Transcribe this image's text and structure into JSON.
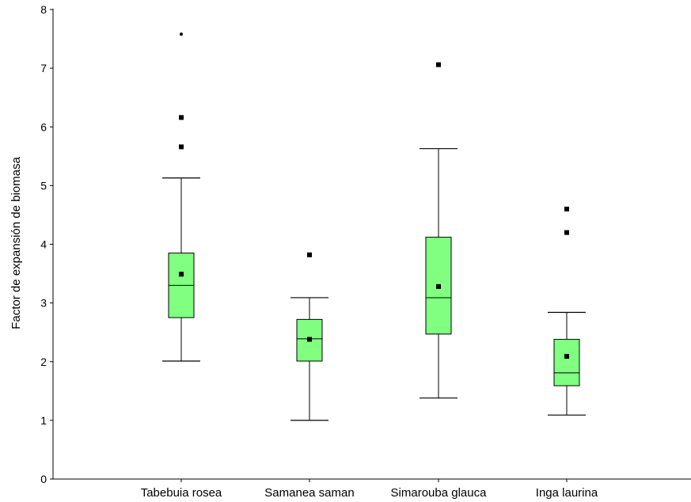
{
  "chart_data": {
    "type": "box",
    "title": "",
    "xlabel": "",
    "ylabel": "Factor de expansión de biomasa",
    "ylim": [
      0,
      8
    ],
    "yticks": [
      "0",
      "1",
      "2",
      "3",
      "4",
      "5",
      "6",
      "7",
      "8"
    ],
    "grid": false,
    "legend": "none",
    "box_color": "#80ff80",
    "categories": [
      "Tabebuia rosea",
      "Samanea saman",
      "Simarouba glauca",
      "Inga laurina"
    ],
    "boxes": [
      {
        "whisker_low": 2.01,
        "q1": 2.75,
        "median": 3.3,
        "q3": 3.85,
        "whisker_high": 5.13,
        "mean": 3.49,
        "outliers": [
          5.66,
          6.16
        ],
        "extremes": [
          7.58
        ]
      },
      {
        "whisker_low": 1.0,
        "q1": 2.01,
        "median": 2.39,
        "q3": 2.72,
        "whisker_high": 3.09,
        "mean": 2.38,
        "outliers": [
          3.82
        ],
        "extremes": []
      },
      {
        "whisker_low": 1.38,
        "q1": 2.47,
        "median": 3.09,
        "q3": 4.12,
        "whisker_high": 5.63,
        "mean": 3.28,
        "outliers": [
          7.06
        ],
        "extremes": []
      },
      {
        "whisker_low": 1.09,
        "q1": 1.59,
        "median": 1.81,
        "q3": 2.38,
        "whisker_high": 2.84,
        "mean": 2.09,
        "outliers": [
          4.2,
          4.6
        ],
        "extremes": []
      }
    ]
  }
}
